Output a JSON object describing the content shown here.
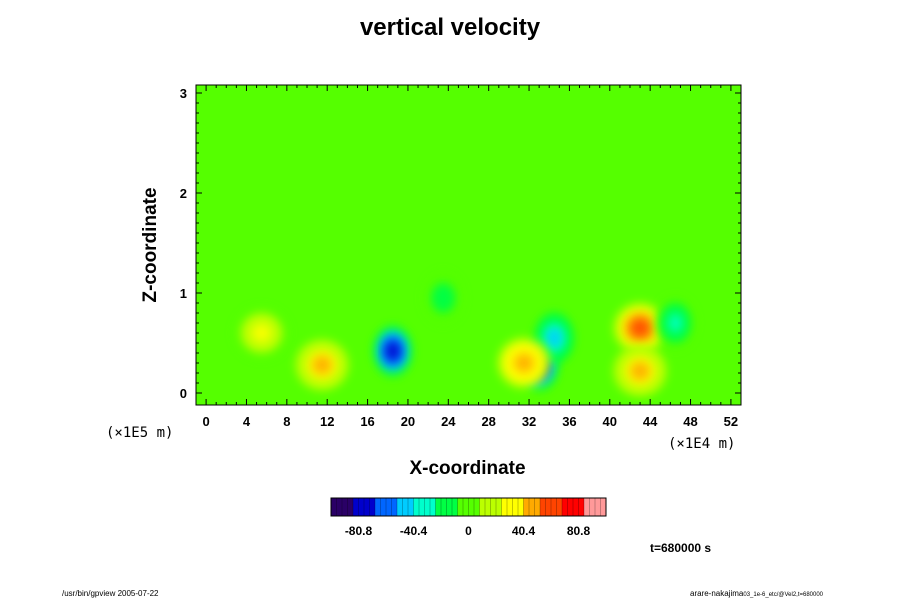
{
  "chart_data": {
    "type": "heatmap",
    "title": "vertical velocity",
    "xlabel": "X-coordinate",
    "ylabel": "Z-coordinate",
    "x_scale_label": "(×1E4 m)",
    "y_scale_label": "(×1E5 m)",
    "x_ticks": [
      0,
      4,
      8,
      12,
      16,
      20,
      24,
      28,
      32,
      36,
      40,
      44,
      48,
      52
    ],
    "y_ticks": [
      0,
      1,
      2,
      3
    ],
    "xlim": [
      -1,
      53
    ],
    "ylim": [
      -0.12,
      3.08
    ],
    "colorbar": {
      "ticks": [
        -80.8,
        -40.4,
        0,
        40.4,
        80.8
      ],
      "range": [
        -101,
        101
      ],
      "colors": [
        "#2a0066",
        "#0000cc",
        "#0066ff",
        "#00ccff",
        "#00ffcc",
        "#00ff44",
        "#55ff00",
        "#bbff00",
        "#ffff00",
        "#ffaa00",
        "#ff4400",
        "#ff0000",
        "#ff9999"
      ]
    },
    "background_value": 0,
    "features": [
      {
        "x": 18.5,
        "z": 0.42,
        "value": -85
      },
      {
        "x": 33.0,
        "z": 0.28,
        "value": -80
      },
      {
        "x": 34.5,
        "z": 0.55,
        "value": -40
      },
      {
        "x": 11.5,
        "z": 0.28,
        "value": 45
      },
      {
        "x": 31.5,
        "z": 0.3,
        "value": 50
      },
      {
        "x": 43.0,
        "z": 0.65,
        "value": 55
      },
      {
        "x": 43.0,
        "z": 0.22,
        "value": 40
      },
      {
        "x": 5.5,
        "z": 0.6,
        "value": 25
      },
      {
        "x": 46.5,
        "z": 0.7,
        "value": -25
      },
      {
        "x": 23.5,
        "z": 0.95,
        "value": -15
      }
    ]
  },
  "annotations": {
    "time": "t=680000 s",
    "footer_left": "/usr/bin/gpview 2005-07-22",
    "footer_right_main": "arare-nakajima",
    "footer_right_sub": "03_1e-6_etc/@Vel2,t=680000"
  }
}
